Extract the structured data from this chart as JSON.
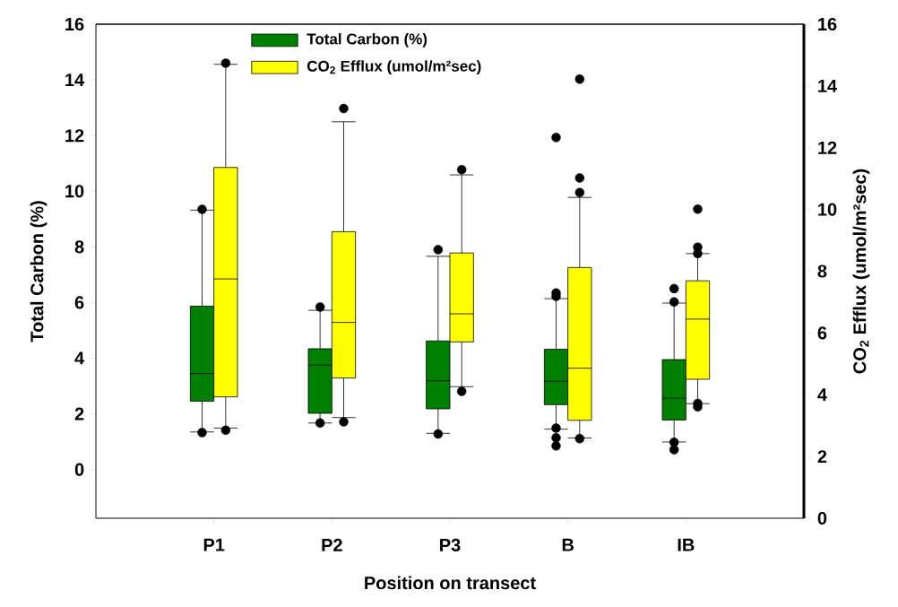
{
  "chart_data": {
    "type": "box",
    "xlabel": "Position on transect",
    "ylabel": "Total Carbon (%)",
    "y2label": "CO$_{2}$ Efflux (umol/m²sec)",
    "categories": [
      "P1",
      "P2",
      "P3",
      "B",
      "IB"
    ],
    "ylim": [
      -1.75,
      16
    ],
    "yticks": [
      0,
      2,
      4,
      6,
      8,
      10,
      12,
      14,
      16
    ],
    "y2lim": [
      0,
      16
    ],
    "y2ticks": [
      0,
      2,
      4,
      6,
      8,
      10,
      12,
      14,
      16
    ],
    "legend": "top",
    "grid": false,
    "marker": "circle",
    "series": [
      {
        "name": "Total Carbon (%)",
        "color": "#008000",
        "boxes": [
          {
            "low": 1.35,
            "q1": 2.45,
            "median": 3.45,
            "q3": 5.87,
            "high": 9.32,
            "outliers": [
              9.35,
              1.33
            ]
          },
          {
            "low": 1.67,
            "q1": 2.02,
            "median": 3.75,
            "q3": 4.34,
            "high": 5.72,
            "outliers": [
              5.84,
              1.67
            ]
          },
          {
            "low": 1.3,
            "q1": 2.18,
            "median": 3.19,
            "q3": 4.62,
            "high": 7.66,
            "outliers": [
              7.9,
              1.28
            ]
          },
          {
            "low": 1.45,
            "q1": 2.33,
            "median": 3.17,
            "q3": 4.32,
            "high": 6.14,
            "outliers": [
              11.93,
              6.34,
              6.22,
              1.49,
              1.14,
              0.85
            ]
          },
          {
            "low": 0.99,
            "q1": 1.78,
            "median": 2.56,
            "q3": 3.95,
            "high": 5.98,
            "outliers": [
              6.5,
              6.02,
              0.98,
              0.71
            ]
          }
        ]
      },
      {
        "name": "CO$_{2}$ Efflux (umol/m²sec)",
        "color": "#ffff00",
        "axis": "y2",
        "boxes": [
          {
            "low": 2.92,
            "q1": 3.93,
            "median": 7.75,
            "q3": 11.36,
            "high": 14.7,
            "outliers": [
              14.74,
              2.85
            ]
          },
          {
            "low": 3.26,
            "q1": 4.54,
            "median": 6.34,
            "q3": 9.28,
            "high": 12.84,
            "outliers": [
              13.27,
              3.12
            ]
          },
          {
            "low": 4.26,
            "q1": 5.71,
            "median": 6.62,
            "q3": 8.59,
            "high": 11.12,
            "outliers": [
              11.29,
              4.11
            ]
          },
          {
            "low": 2.6,
            "q1": 3.17,
            "median": 4.86,
            "q3": 8.12,
            "high": 10.39,
            "outliers": [
              14.22,
              11.02,
              10.55,
              2.58
            ]
          },
          {
            "low": 3.71,
            "q1": 4.5,
            "median": 6.45,
            "q3": 7.69,
            "high": 8.57,
            "outliers": [
              10.01,
              8.78,
              8.57,
              3.72,
              3.61
            ]
          }
        ]
      }
    ]
  }
}
